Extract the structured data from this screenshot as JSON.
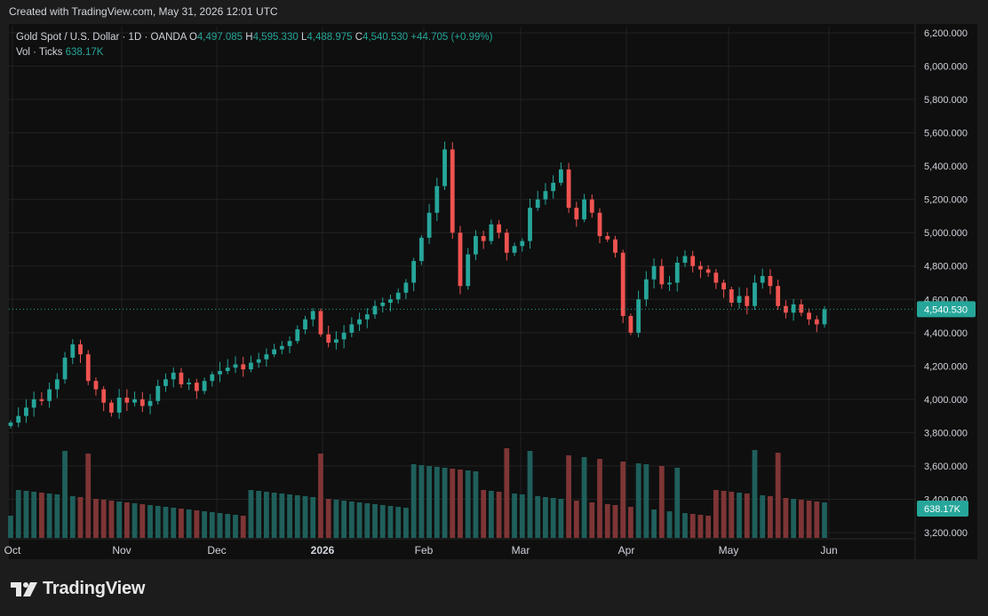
{
  "header": {
    "created": "Created with TradingView.com, May 31, 2026 12:01 UTC"
  },
  "legend": {
    "symbol": "Gold Spot / U.S. Dollar · 1D · OANDA",
    "o_label": "O",
    "o_value": "4,497.085",
    "h_label": "H",
    "h_value": "4,595.330",
    "l_label": "L",
    "l_value": "4,488.975",
    "c_label": "C",
    "c_value": "4,540.530",
    "change": "+44.705 (+0.99%)",
    "vol_label": "Vol · Ticks",
    "vol_value": "638.17K"
  },
  "footer": {
    "brand": "TradingView"
  },
  "colors": {
    "up": "#26a69a",
    "down": "#ef5350",
    "vol_up": "#1f5f5b",
    "vol_down": "#7e3535",
    "grid": "#222222",
    "text": "#d1d4dc",
    "badge": "#26a69a"
  },
  "chart_data": {
    "type": "candlestick",
    "price_axis": {
      "ticks": [
        "6,200.000",
        "6,000.000",
        "5,800.000",
        "5,600.000",
        "5,400.000",
        "5,200.000",
        "5,000.000",
        "4,800.000",
        "4,600.000",
        "4,400.000",
        "4,200.000",
        "4,000.000",
        "3,800.000",
        "3,600.000",
        "3,400.000",
        "3,200.000"
      ],
      "ylim": [
        3200,
        6200
      ],
      "last_price": 4540.53,
      "last_price_label": "4,540.530",
      "volume_label": "638.17K"
    },
    "time_axis": {
      "labels": [
        "Oct",
        "Nov",
        "Dec",
        "2026",
        "Feb",
        "Mar",
        "Apr",
        "May",
        "Jun"
      ],
      "bold": [
        "2026"
      ]
    },
    "grid": true,
    "approx_daily_closes": [
      3860,
      3900,
      3950,
      4000,
      3990,
      4060,
      4120,
      4250,
      4330,
      4270,
      4110,
      4060,
      3980,
      3920,
      4010,
      3980,
      4000,
      3960,
      3990,
      4080,
      4120,
      4160,
      4090,
      4100,
      4050,
      4110,
      4150,
      4170,
      4190,
      4210,
      4180,
      4220,
      4240,
      4270,
      4300,
      4320,
      4350,
      4420,
      4480,
      4530,
      4390,
      4340,
      4360,
      4400,
      4450,
      4480,
      4510,
      4560,
      4580,
      4600,
      4640,
      4700,
      4830,
      4970,
      5120,
      5280,
      5500,
      5000,
      4680,
      4870,
      4980,
      4950,
      5050,
      5000,
      4880,
      4920,
      4950,
      5150,
      5200,
      5250,
      5300,
      5380,
      5150,
      5080,
      5200,
      5120,
      4980,
      4960,
      4880,
      4500,
      4400,
      4600,
      4720,
      4800,
      4690,
      4700,
      4820,
      4860,
      4800,
      4780,
      4760,
      4700,
      4660,
      4580,
      4620,
      4560,
      4700,
      4740,
      4680,
      4560,
      4520,
      4570,
      4520,
      4480,
      4450,
      4540
    ]
  }
}
